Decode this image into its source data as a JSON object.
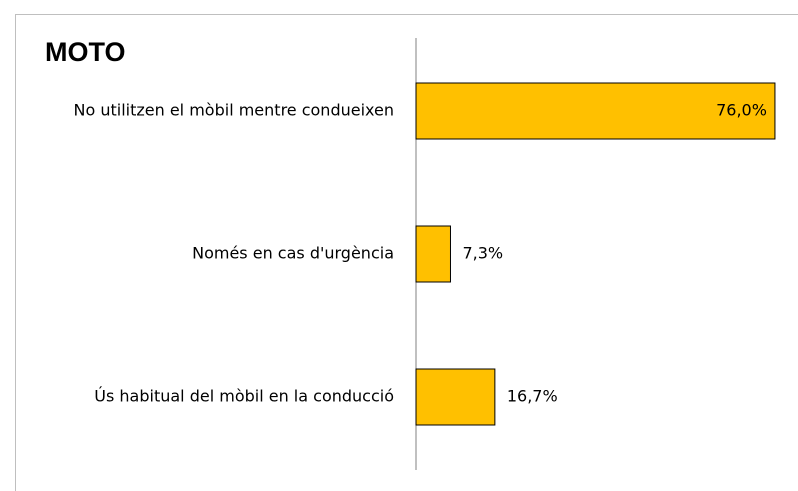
{
  "chart_data": {
    "type": "hbar",
    "title": "MOTO",
    "categories": [
      "No utilitzen el mòbil mentre condueixen",
      "Només en cas d'urgència",
      "Ús habitual del mòbil en la conducció"
    ],
    "values": [
      76.0,
      7.3,
      16.7
    ],
    "value_labels": [
      "76,0%",
      "7,3%",
      "16,7%"
    ],
    "color": "#ffc000"
  }
}
